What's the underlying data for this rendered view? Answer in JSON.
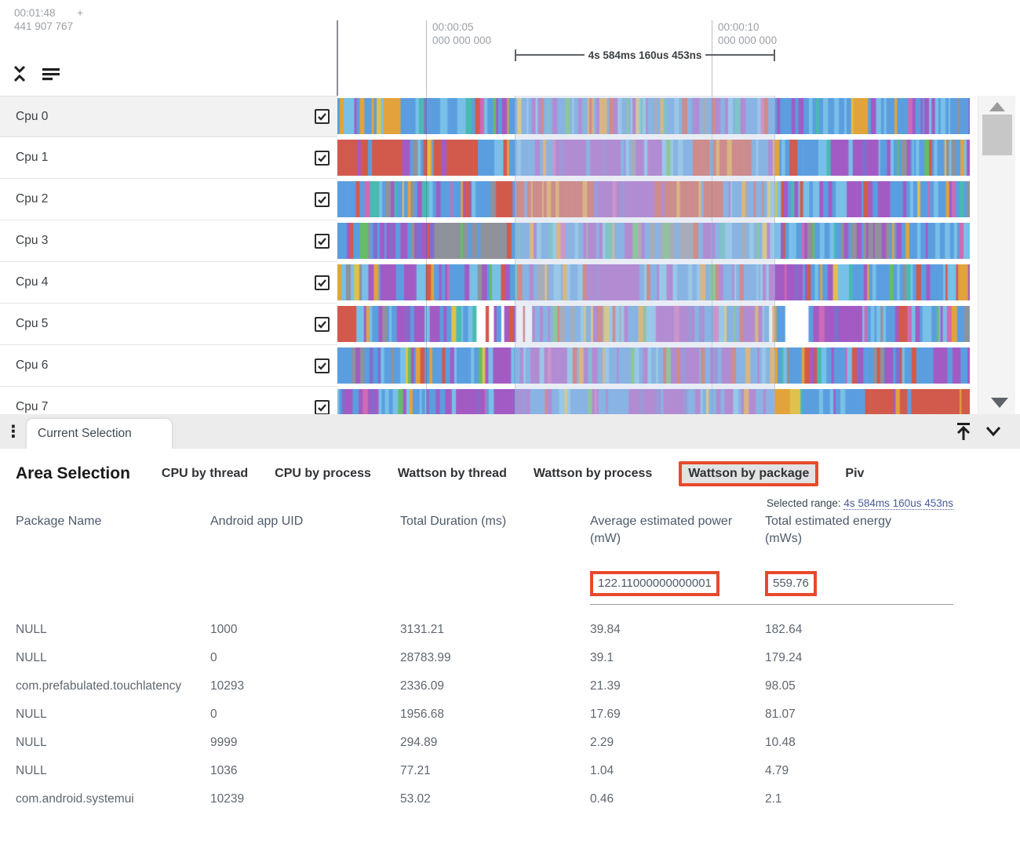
{
  "colors": {
    "annotation_border": "#E8492C",
    "link_blue": "#4A5C9C",
    "header_slate": "#4E5A6B",
    "cell_gray": "#5F6770",
    "timeline_gray": "#9AA0A6",
    "track_label": "#3C4043",
    "strip_bg": "#ECECEC",
    "selected_tab_bg": "#E2E2E2"
  },
  "icons": {
    "collapse_tracks": "unfold-less (two chevrons pointing inward)",
    "track_sort": "three horizontal bars",
    "tab_menu": "vertical kebab dots",
    "pin_to_top": "arrow up to bar",
    "collapse_panel": "chevron down",
    "scroll_up": "triangle up",
    "scroll_down": "triangle down",
    "checkbox_check": "check mark"
  },
  "timeline": {
    "origin_time": "00:01:48",
    "origin_plus": "+",
    "origin_offset": "441 907 767",
    "ticks": [
      {
        "time": "00:00:05",
        "sub": "000 000 000"
      },
      {
        "time": "00:00:10",
        "sub": "000 000 000"
      }
    ],
    "selection": {
      "duration_label": "4s 584ms 160us 453ns"
    }
  },
  "tracks": {
    "seed": 1337,
    "rows": [
      {
        "label": "Cpu 0",
        "checked": true,
        "segments": [
          [
            0.03,
            "mix"
          ],
          [
            0.07,
            "mixOrange"
          ],
          [
            0.16,
            "mix"
          ],
          [
            0.04,
            "mixOrange"
          ],
          [
            0.25,
            "mix"
          ],
          [
            0.05,
            "purpleMix"
          ],
          [
            0.2,
            "mix"
          ],
          [
            0.06,
            "mixOrange"
          ],
          [
            0.14,
            "mix"
          ]
        ]
      },
      {
        "label": "Cpu 1",
        "checked": true,
        "segments": [
          [
            0.1,
            "red"
          ],
          [
            0.05,
            "mix"
          ],
          [
            0.07,
            "red"
          ],
          [
            0.12,
            "mix"
          ],
          [
            0.12,
            "purple"
          ],
          [
            0.1,
            "mix"
          ],
          [
            0.1,
            "red"
          ],
          [
            0.12,
            "mix"
          ],
          [
            0.07,
            "purple"
          ],
          [
            0.15,
            "mix"
          ]
        ]
      },
      {
        "label": "Cpu 2",
        "checked": true,
        "segments": [
          [
            0.25,
            "mix"
          ],
          [
            0.15,
            "red"
          ],
          [
            0.1,
            "purple"
          ],
          [
            0.12,
            "red"
          ],
          [
            0.14,
            "mix"
          ],
          [
            0.1,
            "purpleMix"
          ],
          [
            0.14,
            "mix"
          ]
        ]
      },
      {
        "label": "Cpu 3",
        "checked": true,
        "segments": [
          [
            0.05,
            "mix"
          ],
          [
            0.1,
            "purpleMix"
          ],
          [
            0.12,
            "gray"
          ],
          [
            0.2,
            "mix"
          ],
          [
            0.1,
            "gray"
          ],
          [
            0.22,
            "mix"
          ],
          [
            0.08,
            "gray"
          ],
          [
            0.13,
            "mix"
          ]
        ]
      },
      {
        "label": "Cpu 4",
        "checked": true,
        "segments": [
          [
            0.07,
            "mix"
          ],
          [
            0.05,
            "purple"
          ],
          [
            0.28,
            "mix"
          ],
          [
            0.07,
            "purple"
          ],
          [
            0.2,
            "mix"
          ],
          [
            0.06,
            "purple"
          ],
          [
            0.27,
            "mix"
          ]
        ]
      },
      {
        "label": "Cpu 5",
        "checked": true,
        "segments": [
          [
            0.03,
            "red"
          ],
          [
            0.06,
            "mix"
          ],
          [
            0.07,
            "purple"
          ],
          [
            0.06,
            "mix"
          ],
          [
            0.1,
            "sparse"
          ],
          [
            0.18,
            "mix"
          ],
          [
            0.08,
            "purple"
          ],
          [
            0.1,
            "mix"
          ],
          [
            0.06,
            "sparse"
          ],
          [
            0.09,
            "purple"
          ],
          [
            0.17,
            "mix"
          ]
        ]
      },
      {
        "label": "Cpu 6",
        "checked": true,
        "segments": [
          [
            0.1,
            "purpleMix"
          ],
          [
            0.14,
            "mix"
          ],
          [
            0.12,
            "purple"
          ],
          [
            0.16,
            "mix"
          ],
          [
            0.1,
            "purpleMix"
          ],
          [
            0.2,
            "mix"
          ],
          [
            0.18,
            "purpleMix"
          ]
        ]
      },
      {
        "label": "Cpu 7",
        "checked": true,
        "segments": [
          [
            0.07,
            "purple"
          ],
          [
            0.1,
            "mix"
          ],
          [
            0.13,
            "purple"
          ],
          [
            0.15,
            "mix"
          ],
          [
            0.1,
            "purpleMix"
          ],
          [
            0.14,
            "mix"
          ],
          [
            0.04,
            "orange"
          ],
          [
            0.1,
            "mix"
          ],
          [
            0.17,
            "red"
          ]
        ]
      }
    ],
    "stripe_colors": {
      "blue": "#5B9EE0",
      "lightblue": "#78C0E8",
      "purple": "#A35BC4",
      "violet": "#7F6ECE",
      "red": "#D15A4C",
      "orange": "#E3A33C",
      "yellow": "#DFC14E",
      "green": "#66BC68",
      "teal": "#49BAB2",
      "gray": "#8F929A",
      "magenta": "#CF6AB6",
      "white": "#FFFFFF"
    },
    "palettes": {
      "mix": [
        [
          "blue",
          0.42
        ],
        [
          "lightblue",
          0.18
        ],
        [
          "purple",
          0.14
        ],
        [
          "red",
          0.06
        ],
        [
          "orange",
          0.05
        ],
        [
          "teal",
          0.04
        ],
        [
          "green",
          0.03
        ],
        [
          "gray",
          0.04
        ],
        [
          "magenta",
          0.02
        ],
        [
          "yellow",
          0.02
        ]
      ],
      "mixOrange": [
        [
          "orange",
          0.3
        ],
        [
          "yellow",
          0.12
        ],
        [
          "blue",
          0.28
        ],
        [
          "lightblue",
          0.08
        ],
        [
          "purple",
          0.12
        ],
        [
          "red",
          0.05
        ],
        [
          "teal",
          0.05
        ]
      ],
      "red": [
        [
          "red",
          0.78
        ],
        [
          "blue",
          0.08
        ],
        [
          "purple",
          0.06
        ],
        [
          "orange",
          0.05
        ],
        [
          "lightblue",
          0.03
        ]
      ],
      "purple": [
        [
          "purple",
          0.72
        ],
        [
          "violet",
          0.1
        ],
        [
          "blue",
          0.09
        ],
        [
          "magenta",
          0.05
        ],
        [
          "lightblue",
          0.04
        ]
      ],
      "purpleMix": [
        [
          "purple",
          0.42
        ],
        [
          "blue",
          0.3
        ],
        [
          "lightblue",
          0.1
        ],
        [
          "violet",
          0.06
        ],
        [
          "red",
          0.06
        ],
        [
          "gray",
          0.06
        ]
      ],
      "gray": [
        [
          "gray",
          0.62
        ],
        [
          "blue",
          0.14
        ],
        [
          "purple",
          0.12
        ],
        [
          "green",
          0.06
        ],
        [
          "red",
          0.06
        ]
      ],
      "sparse": [
        [
          "white",
          0.45
        ],
        [
          "blue",
          0.18
        ],
        [
          "purple",
          0.18
        ],
        [
          "red",
          0.08
        ],
        [
          "magenta",
          0.06
        ],
        [
          "orange",
          0.05
        ]
      ],
      "orange": [
        [
          "orange",
          0.6
        ],
        [
          "yellow",
          0.15
        ],
        [
          "blue",
          0.15
        ],
        [
          "purple",
          0.1
        ]
      ]
    }
  },
  "tabstrip": {
    "current_tab": "Current Selection"
  },
  "panel": {
    "title": "Area Selection",
    "tabs": [
      {
        "label": "CPU by thread"
      },
      {
        "label": "CPU by process"
      },
      {
        "label": "Wattson by thread"
      },
      {
        "label": "Wattson by process"
      },
      {
        "label": "Wattson by package",
        "selected": true
      },
      {
        "label": "Piv"
      }
    ],
    "selected_range_label": "Selected range:",
    "selected_range_value": "4s 584ms 160us 453ns"
  },
  "table": {
    "columns": [
      "Package Name",
      "Android app UID",
      "Total Duration (ms)",
      "Average estimated power (mW)",
      "Total estimated energy (mWs)"
    ],
    "summary": {
      "avg_power": "122.11000000000001",
      "total_energy": "559.76"
    },
    "rows": [
      [
        "NULL",
        "1000",
        "3131.21",
        "39.84",
        "182.64"
      ],
      [
        "NULL",
        "0",
        "28783.99",
        "39.1",
        "179.24"
      ],
      [
        "com.prefabulated.touchlatency",
        "10293",
        "2336.09",
        "21.39",
        "98.05"
      ],
      [
        "NULL",
        "0",
        "1956.68",
        "17.69",
        "81.07"
      ],
      [
        "NULL",
        "9999",
        "294.89",
        "2.29",
        "10.48"
      ],
      [
        "NULL",
        "1036",
        "77.21",
        "1.04",
        "4.79"
      ],
      [
        "com.android.systemui",
        "10239",
        "53.02",
        "0.46",
        "2.1"
      ]
    ]
  }
}
